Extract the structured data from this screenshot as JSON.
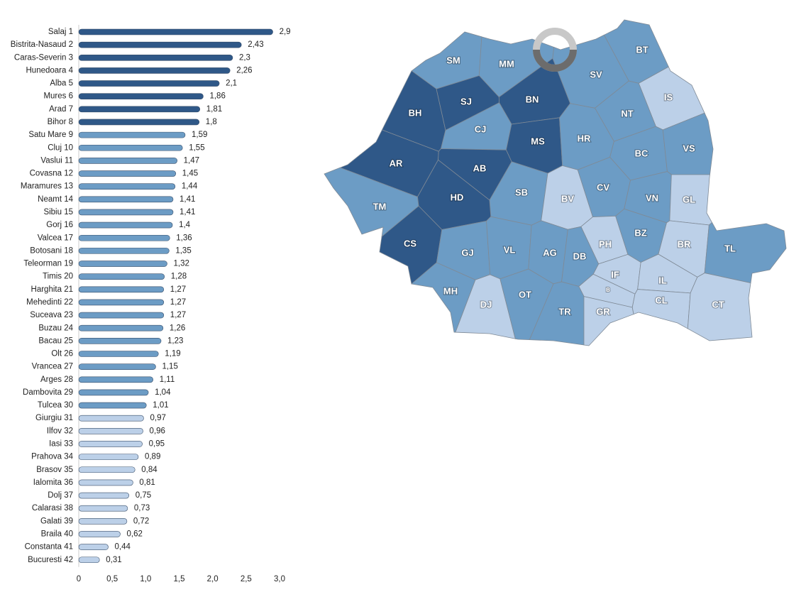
{
  "chart_data": {
    "type": "hbar",
    "categories": [
      "Salaj 1",
      "Bistrita-Nasaud 2",
      "Caras-Severin 3",
      "Hunedoara 4",
      "Alba 5",
      "Mures 6",
      "Arad 7",
      "Bihor 8",
      "Satu Mare 9",
      "Cluj 10",
      "Vaslui 11",
      "Covasna 12",
      "Maramures 13",
      "Neamt 14",
      "Sibiu 15",
      "Gorj 16",
      "Valcea 17",
      "Botosani 18",
      "Teleorman 19",
      "Timis 20",
      "Harghita 21",
      "Mehedinti 22",
      "Suceava 23",
      "Buzau 24",
      "Bacau 25",
      "Olt 26",
      "Vrancea 27",
      "Arges 28",
      "Dambovita 29",
      "Tulcea 30",
      "Giurgiu 31",
      "Ilfov 32",
      "Iasi 33",
      "Prahova 34",
      "Brasov 35",
      "Ialomita 36",
      "Dolj 37",
      "Calarasi 38",
      "Galati 39",
      "Braila 40",
      "Constanta 41",
      "Bucuresti 42"
    ],
    "values": [
      2.9,
      2.43,
      2.3,
      2.26,
      2.1,
      1.86,
      1.81,
      1.8,
      1.59,
      1.55,
      1.47,
      1.45,
      1.44,
      1.41,
      1.41,
      1.4,
      1.36,
      1.35,
      1.32,
      1.28,
      1.27,
      1.27,
      1.27,
      1.26,
      1.23,
      1.19,
      1.15,
      1.11,
      1.04,
      1.01,
      0.97,
      0.96,
      0.95,
      0.89,
      0.84,
      0.81,
      0.75,
      0.73,
      0.72,
      0.62,
      0.44,
      0.31
    ],
    "value_labels": [
      "2,9",
      "2,43",
      "2,3",
      "2,26",
      "2,1",
      "1,86",
      "1,81",
      "1,8",
      "1,59",
      "1,55",
      "1,47",
      "1,45",
      "1,44",
      "1,41",
      "1,41",
      "1,4",
      "1,36",
      "1,35",
      "1,32",
      "1,28",
      "1,27",
      "1,27",
      "1,27",
      "1,26",
      "1,23",
      "1,19",
      "1,15",
      "1,11",
      "1,04",
      "1,01",
      "0,97",
      "0,96",
      "0,95",
      "0,89",
      "0,84",
      "0,81",
      "0,75",
      "0,73",
      "0,72",
      "0,62",
      "0,44",
      "0,31"
    ],
    "colors": [
      "#2f5888",
      "#2f5888",
      "#2f5888",
      "#2f5888",
      "#2f5888",
      "#2f5888",
      "#2f5888",
      "#2f5888",
      "#6c9cc5",
      "#6c9cc5",
      "#6c9cc5",
      "#6c9cc5",
      "#6c9cc5",
      "#6c9cc5",
      "#6c9cc5",
      "#6c9cc5",
      "#6c9cc5",
      "#6c9cc5",
      "#6c9cc5",
      "#6c9cc5",
      "#6c9cc5",
      "#6c9cc5",
      "#6c9cc5",
      "#6c9cc5",
      "#6c9cc5",
      "#6c9cc5",
      "#6c9cc5",
      "#6c9cc5",
      "#6c9cc5",
      "#6c9cc5",
      "#bcd0e8",
      "#bcd0e8",
      "#bcd0e8",
      "#bcd0e8",
      "#bcd0e8",
      "#bcd0e8",
      "#bcd0e8",
      "#bcd0e8",
      "#bcd0e8",
      "#bcd0e8",
      "#bcd0e8",
      "#bcd0e8"
    ],
    "xlim": [
      0,
      3
    ],
    "xticks": [
      0,
      {
        "value": 0.5,
        "label": "0,5"
      },
      {
        "value": 1,
        "label": "1,0"
      },
      {
        "value": 1.5,
        "label": "1,5"
      },
      {
        "value": 2,
        "label": "2,0"
      },
      {
        "value": 2.5,
        "label": "2,5"
      },
      {
        "value": 3,
        "label": "3,0"
      }
    ]
  },
  "map": {
    "regions": [
      {
        "code": "SM",
        "color": "#6c9cc5"
      },
      {
        "code": "MM",
        "color": "#6c9cc5"
      },
      {
        "code": "BT",
        "color": "#6c9cc5"
      },
      {
        "code": "SV",
        "color": "#6c9cc5"
      },
      {
        "code": "IS",
        "color": "#bcd0e8"
      },
      {
        "code": "BH",
        "color": "#2f5888"
      },
      {
        "code": "SJ",
        "color": "#2f5888"
      },
      {
        "code": "BN",
        "color": "#2f5888"
      },
      {
        "code": "NT",
        "color": "#6c9cc5"
      },
      {
        "code": "CJ",
        "color": "#6c9cc5"
      },
      {
        "code": "MS",
        "color": "#2f5888"
      },
      {
        "code": "HR",
        "color": "#6c9cc5"
      },
      {
        "code": "BC",
        "color": "#6c9cc5"
      },
      {
        "code": "VS",
        "color": "#6c9cc5"
      },
      {
        "code": "AR",
        "color": "#2f5888"
      },
      {
        "code": "AB",
        "color": "#2f5888"
      },
      {
        "code": "CV",
        "color": "#6c9cc5"
      },
      {
        "code": "SB",
        "color": "#6c9cc5"
      },
      {
        "code": "BV",
        "color": "#bcd0e8"
      },
      {
        "code": "VN",
        "color": "#6c9cc5"
      },
      {
        "code": "GL",
        "color": "#bcd0e8"
      },
      {
        "code": "TM",
        "color": "#6c9cc5"
      },
      {
        "code": "HD",
        "color": "#2f5888"
      },
      {
        "code": "BZ",
        "color": "#6c9cc5"
      },
      {
        "code": "PH",
        "color": "#bcd0e8"
      },
      {
        "code": "BR",
        "color": "#bcd0e8"
      },
      {
        "code": "TL",
        "color": "#6c9cc5"
      },
      {
        "code": "CS",
        "color": "#2f5888"
      },
      {
        "code": "GJ",
        "color": "#6c9cc5"
      },
      {
        "code": "VL",
        "color": "#6c9cc5"
      },
      {
        "code": "AG",
        "color": "#6c9cc5"
      },
      {
        "code": "DB",
        "color": "#6c9cc5"
      },
      {
        "code": "IF",
        "color": "#bcd0e8"
      },
      {
        "code": "B",
        "color": "#bcd0e8"
      },
      {
        "code": "IL",
        "color": "#bcd0e8"
      },
      {
        "code": "MH",
        "color": "#6c9cc5"
      },
      {
        "code": "DJ",
        "color": "#bcd0e8"
      },
      {
        "code": "OT",
        "color": "#6c9cc5"
      },
      {
        "code": "TR",
        "color": "#6c9cc5"
      },
      {
        "code": "GR",
        "color": "#bcd0e8"
      },
      {
        "code": "CL",
        "color": "#bcd0e8"
      },
      {
        "code": "CT",
        "color": "#bcd0e8"
      }
    ]
  }
}
